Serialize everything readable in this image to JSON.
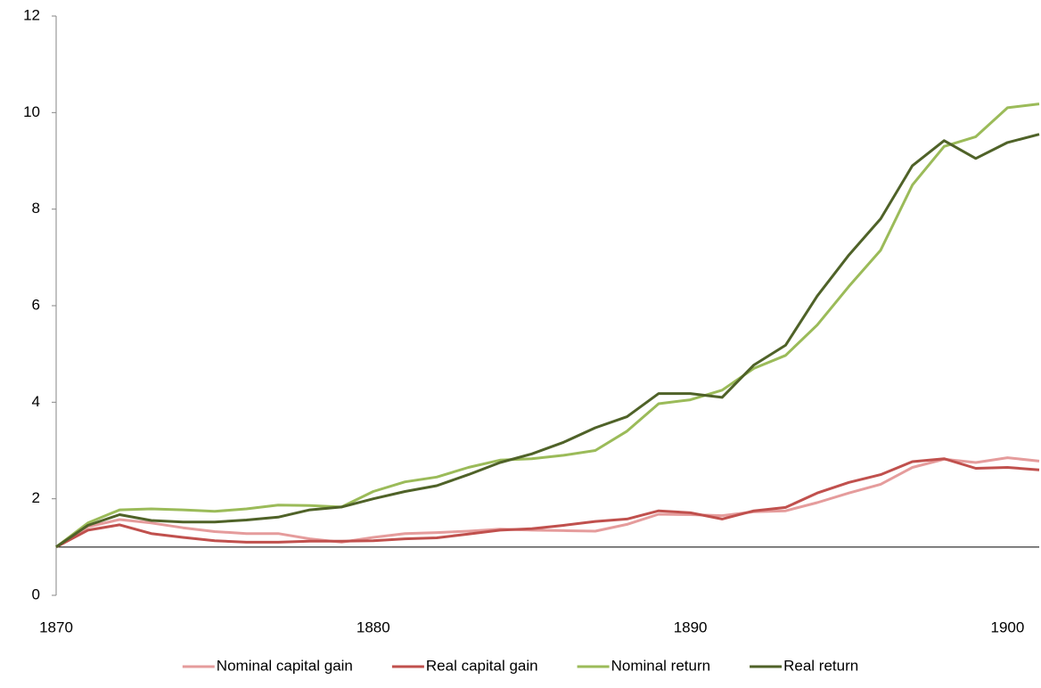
{
  "chart_data": {
    "type": "line",
    "x": [
      1870,
      1871,
      1872,
      1873,
      1874,
      1875,
      1876,
      1877,
      1878,
      1879,
      1880,
      1881,
      1882,
      1883,
      1884,
      1885,
      1886,
      1887,
      1888,
      1889,
      1890,
      1891,
      1892,
      1893,
      1894,
      1895,
      1896,
      1897,
      1898,
      1899,
      1900,
      1901
    ],
    "series": [
      {
        "name": "Nominal capital gain",
        "color": "#e59c9c",
        "values": [
          1.0,
          1.42,
          1.57,
          1.5,
          1.4,
          1.32,
          1.28,
          1.28,
          1.17,
          1.1,
          1.2,
          1.28,
          1.3,
          1.33,
          1.37,
          1.35,
          1.34,
          1.33,
          1.47,
          1.68,
          1.67,
          1.65,
          1.73,
          1.75,
          1.92,
          2.12,
          2.3,
          2.65,
          2.82,
          2.75,
          2.85,
          2.78
        ]
      },
      {
        "name": "Real capital gain",
        "color": "#c0504d",
        "values": [
          1.0,
          1.35,
          1.46,
          1.28,
          1.2,
          1.13,
          1.1,
          1.1,
          1.12,
          1.12,
          1.13,
          1.17,
          1.19,
          1.27,
          1.35,
          1.38,
          1.45,
          1.53,
          1.58,
          1.75,
          1.71,
          1.58,
          1.75,
          1.82,
          2.12,
          2.34,
          2.5,
          2.77,
          2.83,
          2.63,
          2.65,
          2.6
        ]
      },
      {
        "name": "Nominal return",
        "color": "#9bbb59",
        "values": [
          1.0,
          1.5,
          1.77,
          1.79,
          1.77,
          1.74,
          1.79,
          1.87,
          1.86,
          1.83,
          2.15,
          2.35,
          2.45,
          2.65,
          2.8,
          2.83,
          2.9,
          3.0,
          3.4,
          3.97,
          4.05,
          4.25,
          4.7,
          4.97,
          5.6,
          6.4,
          7.15,
          8.5,
          9.3,
          9.5,
          10.1,
          10.18
        ]
      },
      {
        "name": "Real return",
        "color": "#4f6228",
        "values": [
          1.0,
          1.45,
          1.67,
          1.55,
          1.52,
          1.52,
          1.56,
          1.62,
          1.77,
          1.83,
          2.0,
          2.15,
          2.27,
          2.5,
          2.75,
          2.93,
          3.17,
          3.47,
          3.7,
          4.18,
          4.18,
          4.1,
          4.77,
          5.18,
          6.2,
          7.05,
          7.8,
          8.9,
          9.42,
          9.05,
          9.38,
          9.55
        ]
      }
    ],
    "xlim": [
      1870,
      1901
    ],
    "xticks": [
      1870,
      1880,
      1890,
      1900
    ],
    "ylim": [
      0,
      12
    ],
    "yticks": [
      0,
      2,
      4,
      6,
      8,
      10,
      12
    ],
    "x_axis_crosses": 1,
    "legend": "bottom"
  }
}
